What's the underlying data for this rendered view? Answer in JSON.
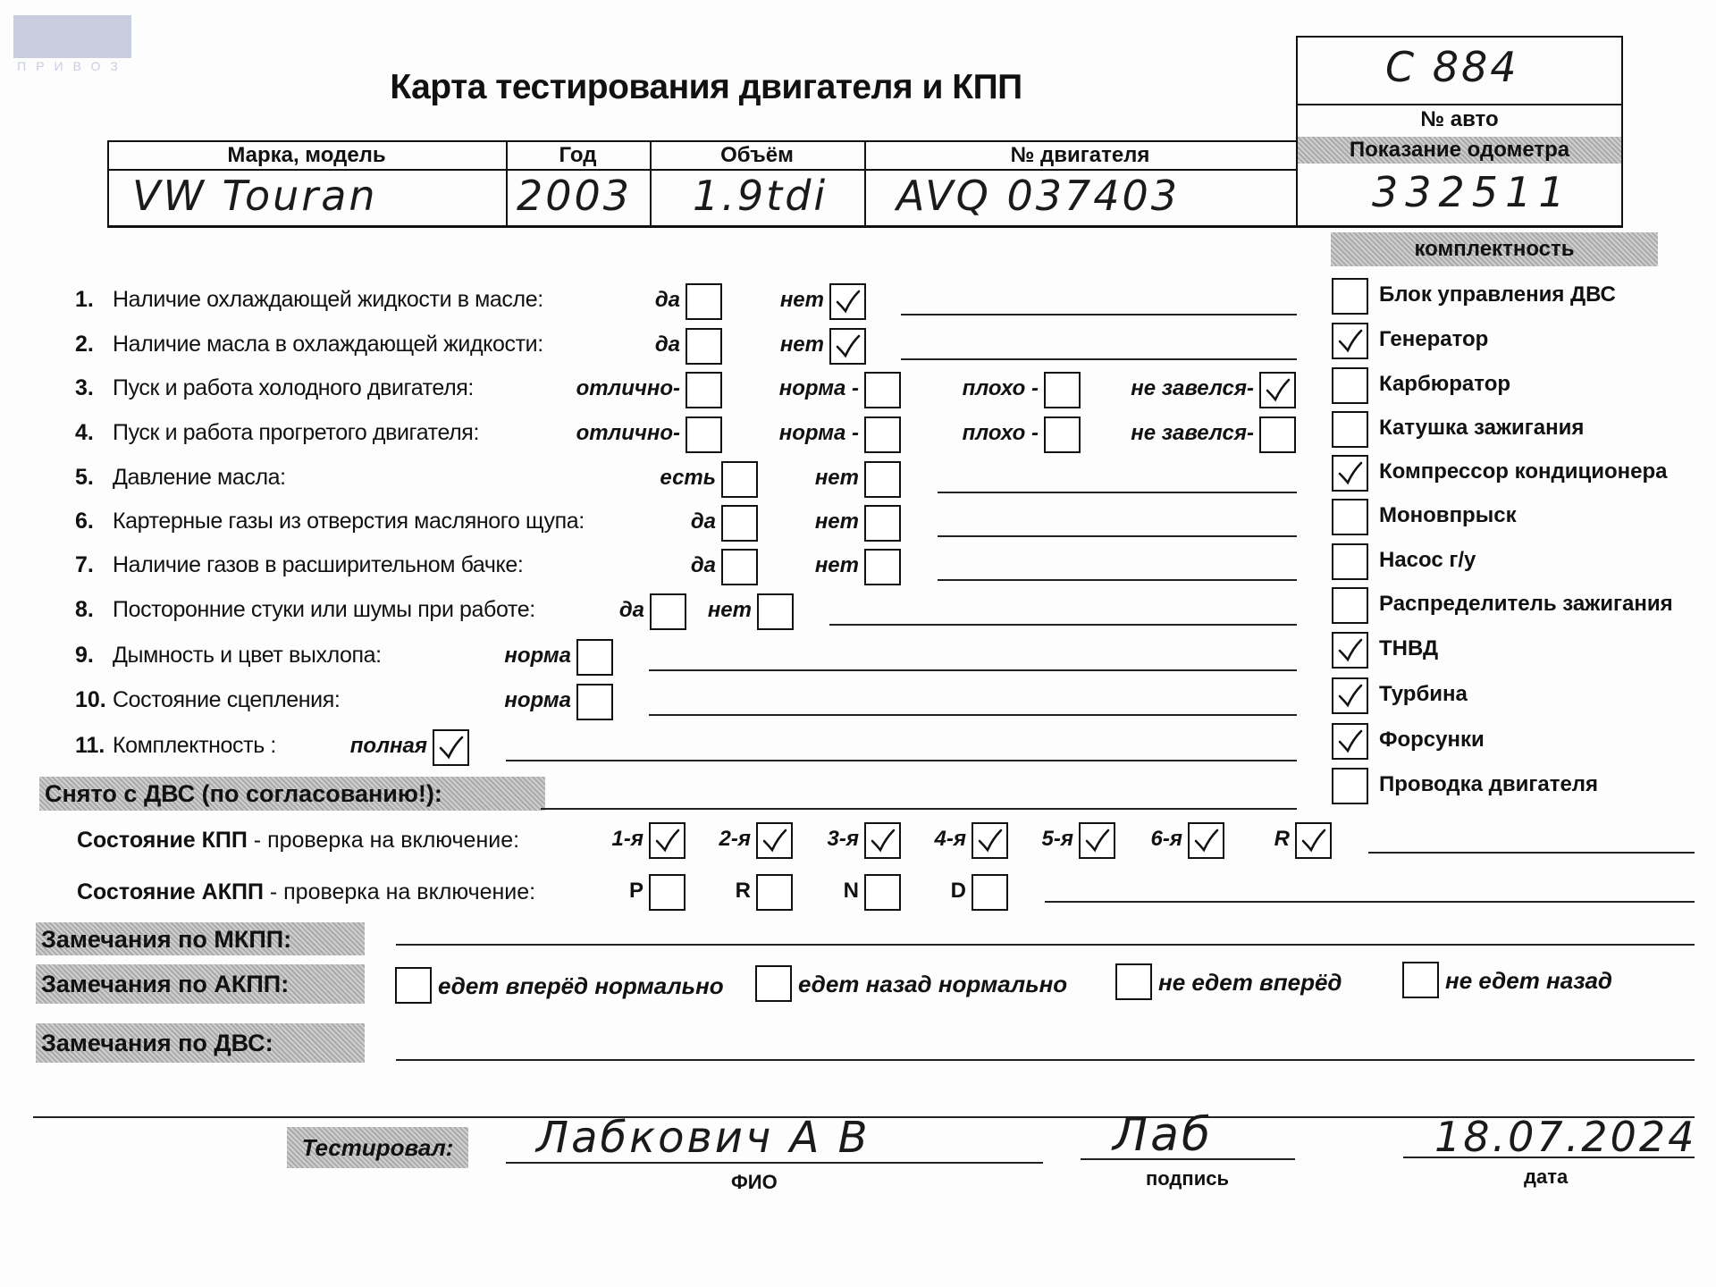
{
  "logo": {
    "text": "АВТО",
    "sub": "ПРИВОЗ",
    "tm": "™"
  },
  "title": "Карта тестирования двигателя  и КПП",
  "car_number": {
    "label": "№ авто",
    "value": "C 884"
  },
  "odometer": {
    "label": "Показание одометра",
    "value": "332511"
  },
  "header": {
    "columns": [
      "Марка, модель",
      "Год",
      "Объём",
      "№ двигателя"
    ],
    "values": [
      "VW Touran",
      "2003",
      "1.9tdi",
      "AVQ 037403"
    ]
  },
  "questions": [
    {
      "n": "1.",
      "label": "Наличие охлаждающей жидкости в масле:",
      "options": [
        {
          "label": "да",
          "checked": false
        },
        {
          "label": "нет",
          "checked": true
        }
      ]
    },
    {
      "n": "2.",
      "label": "Наличие масла в охлаждающей жидкости:",
      "options": [
        {
          "label": "да",
          "checked": false
        },
        {
          "label": "нет",
          "checked": true
        }
      ]
    },
    {
      "n": "3.",
      "label": "Пуск и работа холодного двигателя:",
      "options": [
        {
          "label": "отлично-",
          "checked": false
        },
        {
          "label": "норма -",
          "checked": false
        },
        {
          "label": "плохо -",
          "checked": false
        },
        {
          "label": "не завелся-",
          "checked": true
        }
      ]
    },
    {
      "n": "4.",
      "label": "Пуск и работа прогретого двигателя:",
      "options": [
        {
          "label": "отлично-",
          "checked": false
        },
        {
          "label": "норма -",
          "checked": false
        },
        {
          "label": "плохо -",
          "checked": false
        },
        {
          "label": "не завелся-",
          "checked": false
        }
      ]
    },
    {
      "n": "5.",
      "label": "Давление масла:",
      "options": [
        {
          "label": "есть",
          "checked": false
        },
        {
          "label": "нет",
          "checked": false
        }
      ]
    },
    {
      "n": "6.",
      "label": "Картерные газы из отверстия масляного щупа:",
      "options": [
        {
          "label": "да",
          "checked": false
        },
        {
          "label": "нет",
          "checked": false
        }
      ]
    },
    {
      "n": "7.",
      "label": "Наличие газов в расширительном бачке:",
      "options": [
        {
          "label": "да",
          "checked": false
        },
        {
          "label": "нет",
          "checked": false
        }
      ]
    },
    {
      "n": "8.",
      "label": "Посторонние стуки или шумы при работе:",
      "options": [
        {
          "label": "да",
          "checked": false
        },
        {
          "label": "нет",
          "checked": false
        }
      ]
    },
    {
      "n": "9.",
      "label": "Дымность и цвет выхлопа:",
      "options": [
        {
          "label": "норма",
          "checked": false
        }
      ]
    },
    {
      "n": "10.",
      "label": "Состояние сцепления:",
      "options": [
        {
          "label": "норма",
          "checked": false
        }
      ]
    },
    {
      "n": "11.",
      "label": "Комплектность :",
      "options": [
        {
          "label": "полная",
          "checked": true
        }
      ]
    }
  ],
  "completeness": {
    "title": "комплектность",
    "items": [
      {
        "label": "Блок управления ДВС",
        "checked": false
      },
      {
        "label": "Генератор",
        "checked": true
      },
      {
        "label": "Карбюратор",
        "checked": false
      },
      {
        "label": "Катушка зажигания",
        "checked": false
      },
      {
        "label": "Компрессор кондиционера",
        "checked": true
      },
      {
        "label": "Моновпрыск",
        "checked": false
      },
      {
        "label": "Насос г/у",
        "checked": false
      },
      {
        "label": "Распределитель зажигания",
        "checked": false
      },
      {
        "label": "ТНВД",
        "checked": true
      },
      {
        "label": "Турбина",
        "checked": true
      },
      {
        "label": "Форсунки",
        "checked": true
      },
      {
        "label": "Проводка двигателя",
        "checked": false
      }
    ]
  },
  "removed": "Снято с ДВС (по согласованию!):",
  "manual": {
    "bold": "Состояние КПП",
    "rest": " - проверка на включение:",
    "gears": [
      {
        "label": "1-я",
        "checked": true
      },
      {
        "label": "2-я",
        "checked": true
      },
      {
        "label": "3-я",
        "checked": true
      },
      {
        "label": "4-я",
        "checked": true
      },
      {
        "label": "5-я",
        "checked": true
      },
      {
        "label": "6-я",
        "checked": true
      },
      {
        "label": "R",
        "checked": true
      }
    ]
  },
  "auto": {
    "bold": "Состояние АКПП",
    "rest": " - проверка на включение:",
    "gears": [
      {
        "label": "P",
        "checked": false
      },
      {
        "label": "R",
        "checked": false
      },
      {
        "label": "N",
        "checked": false
      },
      {
        "label": "D",
        "checked": false
      }
    ]
  },
  "remarks": {
    "mkpp": "Замечания по МКПП:",
    "akpp": "Замечания по АКПП:",
    "dvs": "Замечания по ДВС:",
    "akpp_options": [
      {
        "label": "едет вперёд нормально",
        "checked": false
      },
      {
        "label": "едет назад нормально",
        "checked": false
      },
      {
        "label": "не едет вперёд",
        "checked": false
      },
      {
        "label": "не едет назад",
        "checked": false
      }
    ]
  },
  "footer": {
    "tested": "Тестировал:",
    "name": "Лабкович А В",
    "name_label": "ФИО",
    "signature": "Лаб",
    "signature_label": "подпись",
    "date": "18.07.2024",
    "date_label": "дата"
  }
}
